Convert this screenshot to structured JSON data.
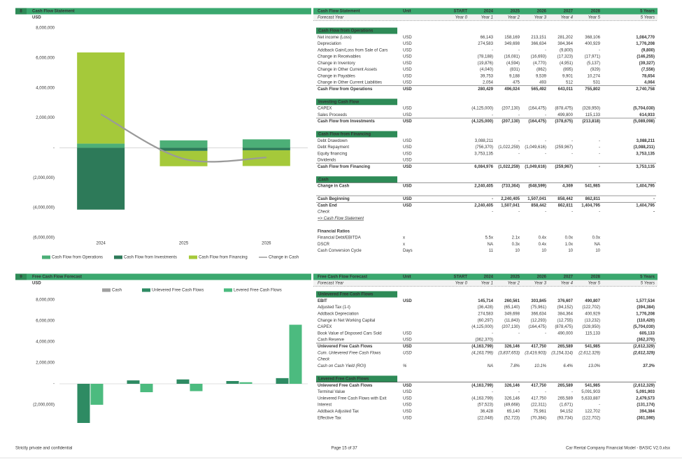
{
  "chart_data": [
    {
      "type": "bar",
      "stacked": true,
      "section_number": "8",
      "title": "Cash Flow Statement",
      "y_label": "USD",
      "categories": [
        "2024",
        "2025",
        "2026"
      ],
      "series": [
        {
          "name": "Cash Flow from Operations",
          "color": "#4caf77",
          "values": [
            280429,
            496024,
            565492
          ]
        },
        {
          "name": "Cash Flow from Investments",
          "color": "#2d7a59",
          "values": [
            -4125000,
            -207130,
            -164475
          ]
        },
        {
          "name": "Cash Flow from Financing",
          "color": "#a5c93a",
          "values": [
            6084976,
            -1022259,
            -1049616
          ]
        },
        {
          "name": "Change in Cash",
          "type": "line",
          "color": "#9a9a9a",
          "values": [
            2240405,
            -733364,
            -648599
          ]
        }
      ],
      "ylim": [
        -6000000,
        8000000
      ],
      "yticks": [
        {
          "value": 8000000,
          "label": "8,000,000"
        },
        {
          "value": 6000000,
          "label": "6,000,000"
        },
        {
          "value": 4000000,
          "label": "4,000,000"
        },
        {
          "value": 2000000,
          "label": "2,000,000"
        },
        {
          "value": 0,
          "label": "-"
        },
        {
          "value": -2000000,
          "label": "(2,000,000)"
        },
        {
          "value": -4000000,
          "label": "(4,000,000)"
        },
        {
          "value": -6000000,
          "label": "(6,000,000)"
        }
      ]
    },
    {
      "type": "bar",
      "section_number": "9",
      "title": "Free Cash Flow Forecast",
      "y_label": "USD",
      "categories": [
        null,
        null,
        null,
        null,
        null
      ],
      "series": [
        {
          "name": "Cash",
          "color": "#a0a0a0",
          "values": [
            0,
            0,
            0,
            0,
            0
          ]
        },
        {
          "name": "Unlevered Free Cash Flows",
          "color": "#2e8b63",
          "values": [
            -4163799,
            326146,
            417750,
            265589,
            541985
          ]
        },
        {
          "name": "Levered Free Cash Flows",
          "color": "#4cbb7f",
          "values": [
            -2000000,
            -800000,
            -700000,
            150000,
            5633887
          ]
        }
      ],
      "ylim": [
        -3700000,
        8500000
      ],
      "yticks": [
        {
          "value": 8000000,
          "label": "8,000,000"
        },
        {
          "value": 6000000,
          "label": "6,000,000"
        },
        {
          "value": 4000000,
          "label": "4,000,000"
        },
        {
          "value": 2000000,
          "label": "2,000,000"
        },
        {
          "value": 0,
          "label": "-"
        },
        {
          "value": -2000000,
          "label": "(2,000,000)"
        }
      ]
    }
  ],
  "tables": [
    {
      "title": "Cash Flow Statement",
      "columns": [
        "Unit",
        "START",
        "2024",
        "2025",
        "2026",
        "2027",
        "2028",
        "5 Years"
      ],
      "forecast_row": [
        "Forecast Year",
        "Year 0",
        "Year 1",
        "Year 2",
        "Year 3",
        "Year 4",
        "Year 5",
        "5 Years"
      ],
      "sections": [
        {
          "title": "Cash Flow from Operations",
          "rows": [
            [
              "Net income (Loss)",
              "USD",
              null,
              "66,143",
              "158,169",
              "213,151",
              "281,202",
              "368,106",
              "1,084,770"
            ],
            [
              "Depreciation",
              "USD",
              null,
              "274,583",
              "349,698",
              "366,634",
              "384,364",
              "400,929",
              "1,776,208"
            ],
            [
              "Addback Gain/Loss from Sale of Cars",
              "USD",
              null,
              "-",
              "-",
              "-",
              "(9,800)",
              "-",
              "(9,800)"
            ],
            [
              "Change in Receivables",
              "USD",
              null,
              "(78,188)",
              "(16,081)",
              "(16,693)",
              "(17,323)",
              "(17,971)",
              "(146,255)"
            ],
            [
              "Change in Inventory",
              "USD",
              null,
              "(19,876)",
              "(4,594)",
              "(4,770)",
              "(4,951)",
              "(5,137)",
              "(39,327)"
            ],
            [
              "Change in Other Current Assets",
              "USD",
              null,
              "(4,040)",
              "(831)",
              "(862)",
              "(895)",
              "(929)",
              "(7,556)"
            ],
            [
              "Change in Payables",
              "USD",
              null,
              "39,753",
              "9,188",
              "9,539",
              "9,901",
              "10,274",
              "78,654"
            ],
            [
              "Change in Other Current Liabilities",
              "USD",
              null,
              "2,054",
              "475",
              "493",
              "512",
              "531",
              "4,064"
            ],
            [
              "Cash Flow from Operations",
              "USD",
              null,
              "280,429",
              "496,024",
              "565,492",
              "643,011",
              "755,802",
              "2,740,758"
            ]
          ]
        },
        {
          "title": "Investing Cash Flow",
          "rows": [
            [
              "CAPEX",
              "USD",
              null,
              "(4,125,000)",
              "(207,130)",
              "(164,475)",
              "(878,475)",
              "(328,950)",
              "(5,704,030)"
            ],
            [
              "Sales Proceeds",
              "USD",
              null,
              "-",
              "-",
              "-",
              "499,800",
              "115,133",
              "614,933"
            ],
            [
              "Cash Flow from Investments",
              "USD",
              null,
              "(4,125,000)",
              "(207,130)",
              "(164,475)",
              "(378,675)",
              "(213,818)",
              "(5,089,098)"
            ]
          ]
        },
        {
          "title": "Cash Flow from Financing",
          "rows": [
            [
              "Debt Drawdown",
              "USD",
              null,
              "3,088,211",
              "-",
              "-",
              "-",
              "-",
              "3,088,211"
            ],
            [
              "Debt Repayment",
              "USD",
              null,
              "(756,370)",
              "(1,022,259)",
              "(1,049,616)",
              "(259,967)",
              "-",
              "(3,088,211)"
            ],
            [
              "Equity financing",
              "USD",
              null,
              "3,753,135",
              "-",
              "-",
              "-",
              "-",
              "3,753,135"
            ],
            [
              "Dividends",
              "USD",
              null,
              null,
              null,
              null,
              null,
              null,
              null
            ],
            [
              "Cash Flow from Financing",
              "USD",
              null,
              "6,084,976",
              "(1,022,259)",
              "(1,049,616)",
              "(259,967)",
              "-",
              "3,753,135"
            ]
          ]
        },
        {
          "title": "Cash",
          "rows": [
            [
              "Change in Cash",
              "USD",
              null,
              "2,240,405",
              "(733,364)",
              "(648,599)",
              "4,369",
              "541,985",
              "1,404,795"
            ],
            [
              "Cash Beginning",
              "USD",
              null,
              "-",
              "2,240,405",
              "1,507,041",
              "858,442",
              "862,811",
              "-"
            ],
            [
              "Cash End",
              "USD",
              null,
              "2,240,405",
              "1,507,041",
              "858,442",
              "862,811",
              "1,404,795",
              "1,404,795"
            ],
            [
              "Check",
              null,
              null,
              "-",
              "-",
              "-",
              "-",
              "-",
              "-"
            ]
          ],
          "link": "=> Cash Flow Statement"
        },
        {
          "title": "Financial Ratios",
          "rows": [
            [
              "Financial Debt/EBITDA",
              "x",
              null,
              "5.5x",
              "2.1x",
              "0.4x",
              "0.0x",
              "0.0x",
              null
            ],
            [
              "DSCR",
              "x",
              null,
              "NA",
              "0.3x",
              "0.4x",
              "1.0x",
              "NA",
              null
            ],
            [
              "Cash Conversion Cycle",
              "Days",
              null,
              "11",
              "10",
              "10",
              "10",
              "10",
              null
            ]
          ]
        }
      ]
    },
    {
      "title": "Free Cash Flow Forecast",
      "columns": [
        "Unit",
        "START",
        "2024",
        "2025",
        "2026",
        "2027",
        "2028",
        "5 Years"
      ],
      "forecast_row": [
        "Forecast Year",
        "Year 0",
        "Year 1",
        "Year 2",
        "Year 3",
        "Year 4",
        "Year 5",
        "5 Years"
      ],
      "sections": [
        {
          "title": "Unlevered Free Cash Flows",
          "rows": [
            [
              "EBIT",
              "USD",
              null,
              "145,714",
              "260,561",
              "303,845",
              "376,607",
              "490,807",
              "1,577,534"
            ],
            [
              "Adjusted Tax (1-t)",
              null,
              null,
              "(36,428)",
              "(65,140)",
              "(75,961)",
              "(94,152)",
              "(122,702)",
              "(394,384)"
            ],
            [
              "Addback Depreciation",
              null,
              null,
              "274,583",
              "349,698",
              "366,634",
              "384,364",
              "400,929",
              "1,776,208"
            ],
            [
              "Change in Net Working Capital",
              null,
              null,
              "(60,297)",
              "(11,843)",
              "(12,293)",
              "(12,755)",
              "(13,232)",
              "(110,420)"
            ],
            [
              "CAPEX",
              null,
              null,
              "(4,125,000)",
              "(207,130)",
              "(164,475)",
              "(878,475)",
              "(328,950)",
              "(5,704,030)"
            ],
            [
              "Book Value of Disposed Cars Sold",
              "USD",
              null,
              "-",
              "-",
              "-",
              "490,000",
              "115,133",
              "605,133"
            ],
            [
              "Cash Reserve",
              "USD",
              null,
              "(362,370)",
              null,
              null,
              null,
              null,
              "(362,370)"
            ],
            [
              "Unlevered Free Cash Flows",
              "USD",
              null,
              "(4,163,799)",
              "326,146",
              "417,750",
              "265,589",
              "541,985",
              "(2,612,329)"
            ],
            [
              "Cum. Unlevered Free Cash Flows",
              "USD",
              null,
              "(4,163,799)",
              "(3,837,653)",
              "(3,419,903)",
              "(3,154,314)",
              "(2,612,329)",
              "(2,612,329)"
            ],
            [
              "Check",
              null,
              null,
              null,
              null,
              null,
              null,
              null,
              null
            ],
            [
              "Cash on Cash Yield (ROI)",
              "%",
              null,
              "NA",
              "7.8%",
              "10.1%",
              "6.4%",
              "13.0%",
              "37.3%"
            ]
          ]
        },
        {
          "title": "Levered Free Cash Flows",
          "rows": [
            [
              "Unlevered Free Cash Flows",
              "USD",
              null,
              "(4,163,799)",
              "326,146",
              "417,750",
              "265,589",
              "541,985",
              "(2,612,329)"
            ],
            [
              "Terminal Value",
              "USD",
              null,
              "-",
              "-",
              "-",
              "-",
              "5,091,903",
              "5,091,903"
            ],
            [
              "Unlevered Free Cash Flows with Exit",
              "USD",
              null,
              "(4,163,799)",
              "326,146",
              "417,750",
              "265,589",
              "5,633,887",
              "2,479,573"
            ],
            [
              "Interest",
              "USD",
              null,
              "(57,523)",
              "(49,668)",
              "(22,311)",
              "(1,671)",
              "-",
              "(131,174)"
            ],
            [
              "Addback Adjusted Tax",
              "USD",
              null,
              "36,428",
              "65,140",
              "75,961",
              "94,152",
              "122,702",
              "394,384"
            ],
            [
              "Effective Tax",
              "USD",
              null,
              "(22,048)",
              "(52,723)",
              "(70,384)",
              "(93,734)",
              "(122,702)",
              "(361,590)"
            ]
          ]
        }
      ]
    }
  ],
  "footer": {
    "left": "Strictly private and confidential",
    "center": "Page 15 of 37",
    "right": "Car Rental Company Financial Model - BASIC V2.0.xlsx"
  }
}
